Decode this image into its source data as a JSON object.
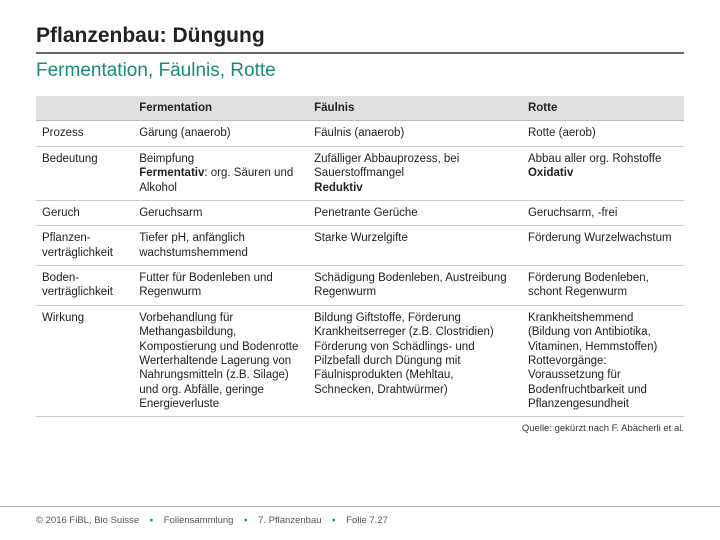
{
  "title": "Pflanzenbau: Düngung",
  "subtitle": "Fermentation, Fäulnis, Rotte",
  "colors": {
    "accent": "#1a8a7a",
    "header_bg": "#e0e0e0",
    "border": "#cccccc",
    "text": "#222222"
  },
  "table": {
    "columns": [
      "",
      "Fermentation",
      "Fäulnis",
      "Rotte"
    ],
    "rows": [
      {
        "label": "Prozess",
        "fermentation": "Gärung (anaerob)",
        "faeulnis": "Fäulnis (anaerob)",
        "rotte": "Rotte (aerob)"
      },
      {
        "label": "Bedeutung",
        "fermentation_html": "Beimpfung<br><span class=\"bold\">Fermentativ</span>: org. Säuren und Alkohol",
        "faeulnis_html": "Zufälliger Abbauprozess, bei Sauerstoffmangel<br><span class=\"bold\">Reduktiv</span>",
        "rotte_html": "Abbau aller org. Rohstoffe<br><span class=\"bold\">Oxidativ</span>"
      },
      {
        "label": "Geruch",
        "fermentation": "Geruchsarm",
        "faeulnis": "Penetrante Gerüche",
        "rotte": "Geruchsarm, -frei"
      },
      {
        "label_html": "Pflanzen-<br>verträglichkeit",
        "fermentation": "Tiefer pH, anfänglich wachstumshemmend",
        "faeulnis": "Starke Wurzelgifte",
        "rotte": "Förderung Wurzelwachstum"
      },
      {
        "label_html": "Boden-<br>verträglichkeit",
        "fermentation": "Futter für Bodenleben und Regenwurm",
        "faeulnis": "Schädigung Bodenleben, Austreibung Regenwurm",
        "rotte": "Förderung Bodenleben, schont Regenwurm"
      },
      {
        "label": "Wirkung",
        "fermentation": "Vorbehandlung für Methangasbildung, Kompostierung und Bodenrotte\nWerterhaltende Lagerung von Nahrungsmitteln (z.B. Silage) und org. Abfälle, geringe Energieverluste",
        "faeulnis": "Bildung Giftstoffe, Förderung Krankheitserreger (z.B. Clostridien)\nFörderung von Schädlings- und Pilzbefall durch Düngung mit Fäulnisprodukten (Mehltau, Schnecken, Drahtwürmer)",
        "rotte": "Krankheitshemmend (Bildung von Antibiotika, Vitaminen, Hemmstoffen)\nRottevorgänge: Voraussetzung für Bodenfruchtbarkeit und Pflanzengesundheit"
      }
    ]
  },
  "source": "Quelle: gekürzt nach F. Abächerli et al.",
  "footer": {
    "copyright": "© 2016 FiBL, Bio Suisse",
    "crumb1": "Foliensammlung",
    "crumb2": "7. Pflanzenbau",
    "crumb3": "Folie 7.27"
  }
}
